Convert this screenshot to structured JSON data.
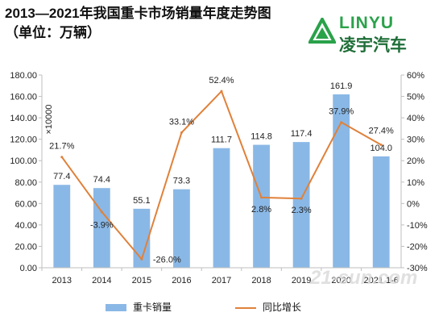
{
  "header": {
    "title": "2013—2021年我国重卡市场销量年度走势图",
    "subtitle": "（单位：万辆）"
  },
  "logo": {
    "text_en": "LINYU",
    "text_cn": "凌宇汽车"
  },
  "watermark": "21-sun.com",
  "colors": {
    "bar": "#8ab8e6",
    "line": "#e0813a",
    "logo": "#2aa24a"
  },
  "chart_data": {
    "type": "bar+line",
    "categories": [
      "2013",
      "2014",
      "2015",
      "2016",
      "2017",
      "2018",
      "2019",
      "2020",
      "2021 1-6"
    ],
    "series": [
      {
        "name": "重卡销量",
        "type": "bar",
        "values": [
          77.4,
          74.4,
          55.1,
          73.3,
          111.7,
          114.8,
          117.4,
          161.9,
          104.0
        ],
        "labels": [
          "77.4",
          "74.4",
          "55.1",
          "73.3",
          "111.7",
          "114.8",
          "117.4",
          "161.9",
          "104.0"
        ],
        "axis": "left"
      },
      {
        "name": "同比增长",
        "type": "line",
        "values": [
          21.7,
          -3.9,
          -26.0,
          33.1,
          52.4,
          2.8,
          2.3,
          37.9,
          27.4
        ],
        "labels": [
          "21.7%",
          "-3.9%",
          "-26.0%",
          "33.1%",
          "52.4%",
          "2.8%",
          "2.3%",
          "37.9%",
          "27.4%"
        ],
        "axis": "right"
      }
    ],
    "y_left": {
      "label": "×10000",
      "min": 0,
      "max": 180,
      "step": 20,
      "ticks": [
        "0.00",
        "20.00",
        "40.00",
        "60.00",
        "80.00",
        "100.00",
        "120.00",
        "140.00",
        "160.00",
        "180.00"
      ]
    },
    "y_right": {
      "min": -30,
      "max": 60,
      "step": 10,
      "ticks": [
        "-30%",
        "-20%",
        "-10%",
        "0%",
        "10%",
        "20%",
        "30%",
        "40%",
        "50%",
        "60%"
      ]
    },
    "grid": false,
    "legend": "bottom"
  }
}
